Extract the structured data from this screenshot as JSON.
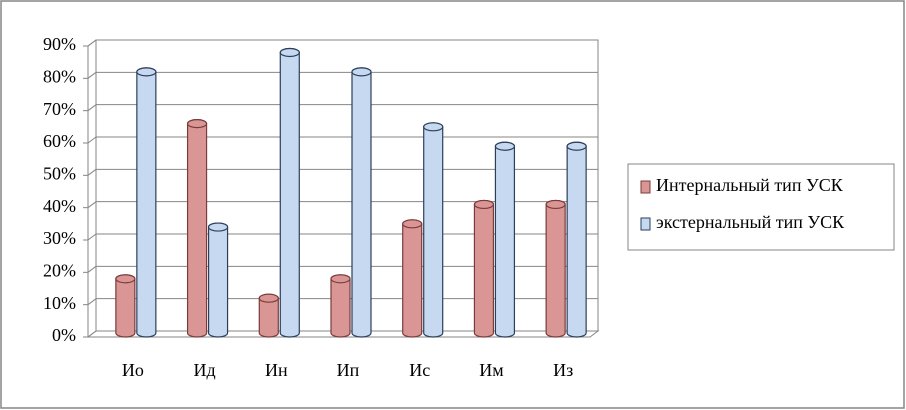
{
  "chart_data": {
    "type": "bar",
    "categories": [
      "Ио",
      "Ид",
      "Ин",
      "Ип",
      "Ис",
      "Им",
      "Из"
    ],
    "series": [
      {
        "name": "Интернальный тип УСК",
        "color": "#d99694",
        "values": [
          18,
          66,
          12,
          18,
          35,
          41,
          41
        ]
      },
      {
        "name": "экстернальный тип УСК",
        "color": "#c6d9f1",
        "values": [
          82,
          34,
          88,
          82,
          65,
          59,
          59
        ]
      }
    ],
    "ylim": [
      0,
      90
    ],
    "yticks": [
      {
        "value": 0,
        "label": "0%"
      },
      {
        "value": 10,
        "label": "10%"
      },
      {
        "value": 20,
        "label": "20%"
      },
      {
        "value": 30,
        "label": "30%"
      },
      {
        "value": 40,
        "label": "40%"
      },
      {
        "value": 50,
        "label": "50%"
      },
      {
        "value": 60,
        "label": "60%"
      },
      {
        "value": 70,
        "label": "70%"
      },
      {
        "value": 80,
        "label": "80%"
      },
      {
        "value": 90,
        "label": "90%"
      }
    ],
    "grid": true,
    "legend": "right"
  }
}
